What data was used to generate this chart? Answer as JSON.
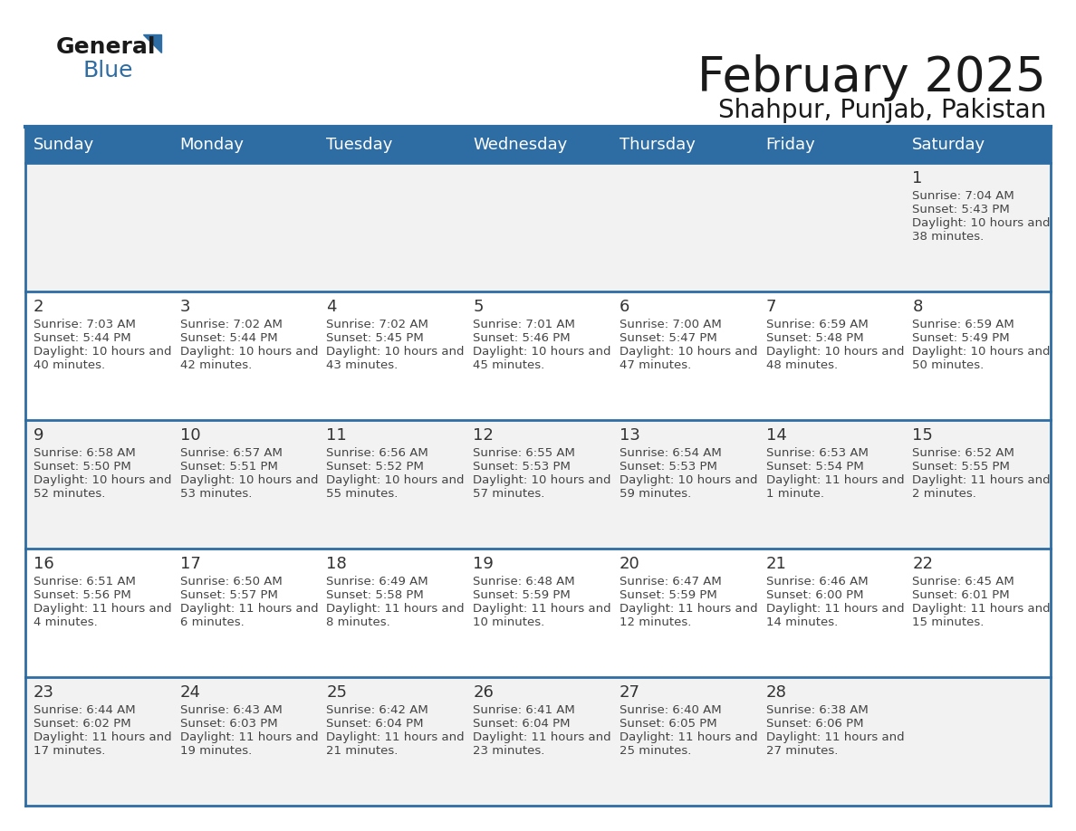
{
  "title": "February 2025",
  "subtitle": "Shahpur, Punjab, Pakistan",
  "header_bg": "#2E6DA4",
  "header_text_color": "#FFFFFF",
  "cell_bg_odd": "#F2F2F2",
  "cell_bg_even": "#FFFFFF",
  "day_number_color": "#333333",
  "info_text_color": "#444444",
  "border_color": "#2E6DA4",
  "days_of_week": [
    "Sunday",
    "Monday",
    "Tuesday",
    "Wednesday",
    "Thursday",
    "Friday",
    "Saturday"
  ],
  "calendar_data": [
    [
      {
        "day": "",
        "sunrise": "",
        "sunset": "",
        "daylight": ""
      },
      {
        "day": "",
        "sunrise": "",
        "sunset": "",
        "daylight": ""
      },
      {
        "day": "",
        "sunrise": "",
        "sunset": "",
        "daylight": ""
      },
      {
        "day": "",
        "sunrise": "",
        "sunset": "",
        "daylight": ""
      },
      {
        "day": "",
        "sunrise": "",
        "sunset": "",
        "daylight": ""
      },
      {
        "day": "",
        "sunrise": "",
        "sunset": "",
        "daylight": ""
      },
      {
        "day": "1",
        "sunrise": "7:04 AM",
        "sunset": "5:43 PM",
        "daylight": "10 hours and 38 minutes."
      }
    ],
    [
      {
        "day": "2",
        "sunrise": "7:03 AM",
        "sunset": "5:44 PM",
        "daylight": "10 hours and 40 minutes."
      },
      {
        "day": "3",
        "sunrise": "7:02 AM",
        "sunset": "5:44 PM",
        "daylight": "10 hours and 42 minutes."
      },
      {
        "day": "4",
        "sunrise": "7:02 AM",
        "sunset": "5:45 PM",
        "daylight": "10 hours and 43 minutes."
      },
      {
        "day": "5",
        "sunrise": "7:01 AM",
        "sunset": "5:46 PM",
        "daylight": "10 hours and 45 minutes."
      },
      {
        "day": "6",
        "sunrise": "7:00 AM",
        "sunset": "5:47 PM",
        "daylight": "10 hours and 47 minutes."
      },
      {
        "day": "7",
        "sunrise": "6:59 AM",
        "sunset": "5:48 PM",
        "daylight": "10 hours and 48 minutes."
      },
      {
        "day": "8",
        "sunrise": "6:59 AM",
        "sunset": "5:49 PM",
        "daylight": "10 hours and 50 minutes."
      }
    ],
    [
      {
        "day": "9",
        "sunrise": "6:58 AM",
        "sunset": "5:50 PM",
        "daylight": "10 hours and 52 minutes."
      },
      {
        "day": "10",
        "sunrise": "6:57 AM",
        "sunset": "5:51 PM",
        "daylight": "10 hours and 53 minutes."
      },
      {
        "day": "11",
        "sunrise": "6:56 AM",
        "sunset": "5:52 PM",
        "daylight": "10 hours and 55 minutes."
      },
      {
        "day": "12",
        "sunrise": "6:55 AM",
        "sunset": "5:53 PM",
        "daylight": "10 hours and 57 minutes."
      },
      {
        "day": "13",
        "sunrise": "6:54 AM",
        "sunset": "5:53 PM",
        "daylight": "10 hours and 59 minutes."
      },
      {
        "day": "14",
        "sunrise": "6:53 AM",
        "sunset": "5:54 PM",
        "daylight": "11 hours and 1 minute."
      },
      {
        "day": "15",
        "sunrise": "6:52 AM",
        "sunset": "5:55 PM",
        "daylight": "11 hours and 2 minutes."
      }
    ],
    [
      {
        "day": "16",
        "sunrise": "6:51 AM",
        "sunset": "5:56 PM",
        "daylight": "11 hours and 4 minutes."
      },
      {
        "day": "17",
        "sunrise": "6:50 AM",
        "sunset": "5:57 PM",
        "daylight": "11 hours and 6 minutes."
      },
      {
        "day": "18",
        "sunrise": "6:49 AM",
        "sunset": "5:58 PM",
        "daylight": "11 hours and 8 minutes."
      },
      {
        "day": "19",
        "sunrise": "6:48 AM",
        "sunset": "5:59 PM",
        "daylight": "11 hours and 10 minutes."
      },
      {
        "day": "20",
        "sunrise": "6:47 AM",
        "sunset": "5:59 PM",
        "daylight": "11 hours and 12 minutes."
      },
      {
        "day": "21",
        "sunrise": "6:46 AM",
        "sunset": "6:00 PM",
        "daylight": "11 hours and 14 minutes."
      },
      {
        "day": "22",
        "sunrise": "6:45 AM",
        "sunset": "6:01 PM",
        "daylight": "11 hours and 15 minutes."
      }
    ],
    [
      {
        "day": "23",
        "sunrise": "6:44 AM",
        "sunset": "6:02 PM",
        "daylight": "11 hours and 17 minutes."
      },
      {
        "day": "24",
        "sunrise": "6:43 AM",
        "sunset": "6:03 PM",
        "daylight": "11 hours and 19 minutes."
      },
      {
        "day": "25",
        "sunrise": "6:42 AM",
        "sunset": "6:04 PM",
        "daylight": "11 hours and 21 minutes."
      },
      {
        "day": "26",
        "sunrise": "6:41 AM",
        "sunset": "6:04 PM",
        "daylight": "11 hours and 23 minutes."
      },
      {
        "day": "27",
        "sunrise": "6:40 AM",
        "sunset": "6:05 PM",
        "daylight": "11 hours and 25 minutes."
      },
      {
        "day": "28",
        "sunrise": "6:38 AM",
        "sunset": "6:06 PM",
        "daylight": "11 hours and 27 minutes."
      },
      {
        "day": "",
        "sunrise": "",
        "sunset": "",
        "daylight": ""
      }
    ]
  ]
}
